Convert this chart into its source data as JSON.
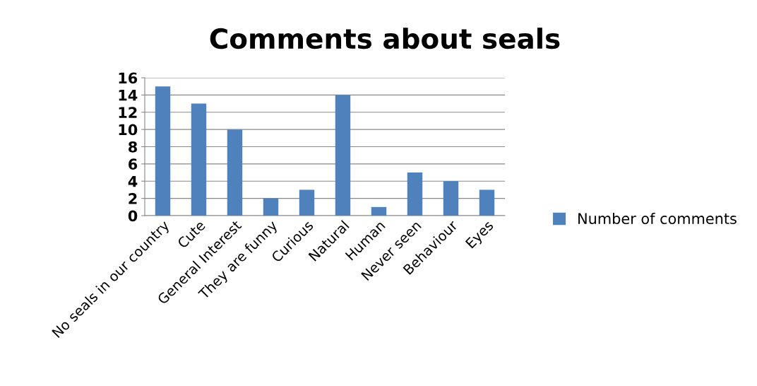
{
  "chart_data": {
    "type": "bar",
    "title": "Comments about seals",
    "categories": [
      "No seals in our country",
      "Cute",
      "General Interest",
      "They are funny",
      "Curious",
      "Natural",
      "Human",
      "Never seen",
      "Behaviour",
      "Eyes"
    ],
    "series": [
      {
        "name": "Number of comments",
        "color": "#4f81bd",
        "values": [
          15,
          13,
          10,
          2,
          3,
          14,
          1,
          5,
          4,
          3
        ]
      }
    ],
    "ylim": [
      0,
      16
    ],
    "yticks": [
      0,
      2,
      4,
      6,
      8,
      10,
      12,
      14,
      16
    ],
    "grid": "y",
    "legend": "right"
  }
}
